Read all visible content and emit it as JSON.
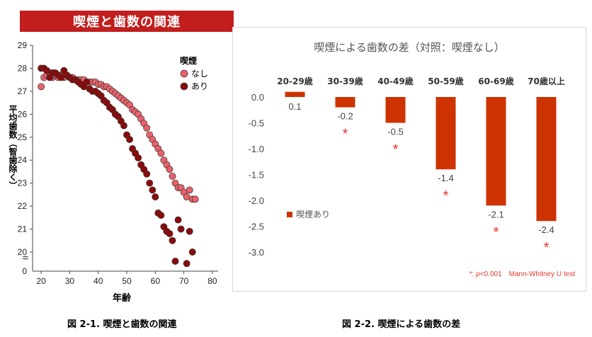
{
  "banner_title": "喫煙と歯数の関連",
  "captions": {
    "left": "図 2-1. 喫煙と歯数の関連",
    "right": "図 2-2. 喫煙による歯数の差"
  },
  "chart_data": [
    {
      "type": "scatter",
      "title": "喫煙と歯数の関連",
      "xlabel": "年齢",
      "ylabel": "平均歯数（智歯除く）",
      "xlim": [
        17,
        82
      ],
      "ylim": [
        20,
        29
      ],
      "x_ticks": [
        "20",
        "30",
        "40",
        "50",
        "60",
        "70",
        "80"
      ],
      "y_ticks": [
        "20",
        "21",
        "22",
        "23",
        "24",
        "25",
        "26",
        "27",
        "28",
        "29"
      ],
      "y_zero_label": "0",
      "axis_break_symbol": "≈",
      "legend_title": "喫煙",
      "colors": {
        "nashi": "#e8626a",
        "ari": "#8b0b0b"
      },
      "series": [
        {
          "name": "なし",
          "points": [
            [
              20,
              27.2
            ],
            [
              21,
              27.6
            ],
            [
              22,
              27.7
            ],
            [
              23,
              27.8
            ],
            [
              24,
              27.6
            ],
            [
              25,
              27.7
            ],
            [
              26,
              27.6
            ],
            [
              27,
              27.7
            ],
            [
              28,
              27.6
            ],
            [
              29,
              27.7
            ],
            [
              30,
              27.6
            ],
            [
              31,
              27.6
            ],
            [
              32,
              27.5
            ],
            [
              33,
              27.5
            ],
            [
              34,
              27.5
            ],
            [
              35,
              27.5
            ],
            [
              36,
              27.4
            ],
            [
              37,
              27.4
            ],
            [
              38,
              27.4
            ],
            [
              39,
              27.4
            ],
            [
              40,
              27.3
            ],
            [
              41,
              27.3
            ],
            [
              42,
              27.2
            ],
            [
              43,
              27.2
            ],
            [
              44,
              27.1
            ],
            [
              45,
              27.0
            ],
            [
              46,
              26.9
            ],
            [
              47,
              26.8
            ],
            [
              48,
              26.7
            ],
            [
              49,
              26.6
            ],
            [
              50,
              26.5
            ],
            [
              51,
              26.4
            ],
            [
              52,
              26.2
            ],
            [
              53,
              26.1
            ],
            [
              54,
              26.0
            ],
            [
              55,
              25.8
            ],
            [
              56,
              25.6
            ],
            [
              57,
              25.4
            ],
            [
              58,
              25.1
            ],
            [
              59,
              24.9
            ],
            [
              60,
              24.7
            ],
            [
              61,
              24.5
            ],
            [
              62,
              24.3
            ],
            [
              63,
              24.0
            ],
            [
              64,
              23.8
            ],
            [
              65,
              23.6
            ],
            [
              66,
              23.3
            ],
            [
              67,
              23.0
            ],
            [
              68,
              22.8
            ],
            [
              69,
              22.8
            ],
            [
              70,
              22.6
            ],
            [
              71,
              22.4
            ],
            [
              72,
              22.7
            ],
            [
              73,
              22.3
            ],
            [
              74,
              22.3
            ]
          ]
        },
        {
          "name": "あり",
          "points": [
            [
              20,
              28.0
            ],
            [
              21,
              28.0
            ],
            [
              22,
              27.9
            ],
            [
              23,
              27.6
            ],
            [
              24,
              27.8
            ],
            [
              25,
              27.8
            ],
            [
              26,
              27.7
            ],
            [
              27,
              27.6
            ],
            [
              28,
              27.9
            ],
            [
              29,
              27.7
            ],
            [
              30,
              27.6
            ],
            [
              31,
              27.5
            ],
            [
              32,
              27.5
            ],
            [
              33,
              27.4
            ],
            [
              34,
              27.3
            ],
            [
              35,
              27.2
            ],
            [
              36,
              27.4
            ],
            [
              37,
              27.1
            ],
            [
              38,
              27.0
            ],
            [
              39,
              27.0
            ],
            [
              40,
              26.9
            ],
            [
              41,
              26.8
            ],
            [
              42,
              26.6
            ],
            [
              43,
              26.5
            ],
            [
              44,
              26.3
            ],
            [
              45,
              26.2
            ],
            [
              46,
              26.0
            ],
            [
              47,
              25.9
            ],
            [
              48,
              25.7
            ],
            [
              49,
              25.5
            ],
            [
              50,
              25.1
            ],
            [
              51,
              24.9
            ],
            [
              52,
              24.5
            ],
            [
              53,
              24.3
            ],
            [
              54,
              24.1
            ],
            [
              55,
              23.8
            ],
            [
              56,
              23.6
            ],
            [
              57,
              23.4
            ],
            [
              58,
              23.0
            ],
            [
              59,
              22.7
            ],
            [
              60,
              22.4
            ],
            [
              61,
              21.7
            ],
            [
              62,
              21.6
            ],
            [
              63,
              21.1
            ],
            [
              64,
              20.9
            ],
            [
              65,
              20.8
            ],
            [
              66,
              20.5
            ],
            [
              67,
              19.6
            ],
            [
              68,
              21.4
            ],
            [
              69,
              21.0
            ],
            [
              71,
              19.5
            ],
            [
              72,
              20.9
            ],
            [
              73,
              20.0
            ]
          ]
        }
      ]
    },
    {
      "type": "bar",
      "title": "喫煙による歯数の差（対照：喫煙なし）",
      "categories": [
        "20-29歳",
        "30-39歳",
        "40-49歳",
        "50-59歳",
        "60-69歳",
        "70歳以上"
      ],
      "values": [
        0.1,
        -0.2,
        -0.5,
        -1.4,
        -2.1,
        -2.4
      ],
      "value_labels": [
        "0.1",
        "-0.2",
        "-0.5",
        "-1.4",
        "-2.1",
        "-2.4"
      ],
      "significant": [
        false,
        true,
        true,
        true,
        true,
        true
      ],
      "significance_symbol": "*",
      "ylim": [
        -3.0,
        0.0
      ],
      "y_ticks": [
        "0.0",
        "-0.5",
        "-1.0",
        "-1.5",
        "-2.0",
        "-2.5",
        "-3.0"
      ],
      "legend": "喫煙あり",
      "bar_color": "#cc3300",
      "footnote": {
        "prefix": "*: ",
        "p": "p",
        "suffix": "<0.001　Mann-Whitney U test"
      }
    }
  ]
}
